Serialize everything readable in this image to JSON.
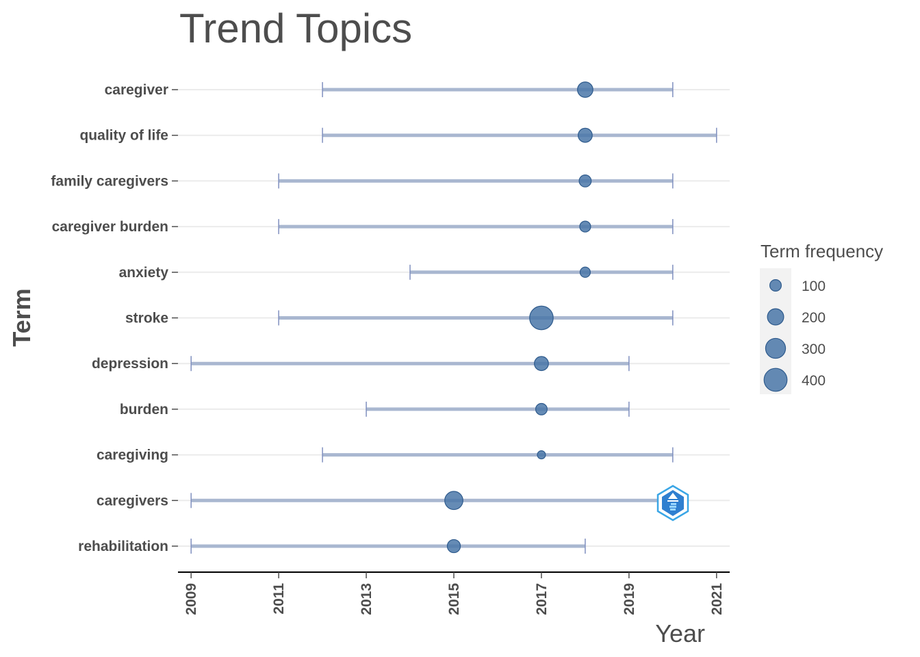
{
  "chart_data": {
    "type": "dot-range",
    "title": "Trend Topics",
    "xlabel": "Year",
    "ylabel": "Term",
    "xlim": [
      2008.7,
      2021.3
    ],
    "x_ticks": [
      2009,
      2011,
      2013,
      2015,
      2017,
      2019,
      2021
    ],
    "terms": [
      {
        "term": "caregiver",
        "start": 2012,
        "end": 2020,
        "median": 2018,
        "freq": 180
      },
      {
        "term": "quality of life",
        "start": 2012,
        "end": 2021,
        "median": 2018,
        "freq": 150
      },
      {
        "term": "family caregivers",
        "start": 2011,
        "end": 2020,
        "median": 2018,
        "freq": 110
      },
      {
        "term": "caregiver burden",
        "start": 2011,
        "end": 2020,
        "median": 2018,
        "freq": 90
      },
      {
        "term": "anxiety",
        "start": 2014,
        "end": 2020,
        "median": 2018,
        "freq": 80
      },
      {
        "term": "stroke",
        "start": 2011,
        "end": 2020,
        "median": 2017,
        "freq": 420
      },
      {
        "term": "depression",
        "start": 2009,
        "end": 2019,
        "median": 2017,
        "freq": 150
      },
      {
        "term": "burden",
        "start": 2013,
        "end": 2019,
        "median": 2017,
        "freq": 100
      },
      {
        "term": "caregiving",
        "start": 2012,
        "end": 2020,
        "median": 2017,
        "freq": 50
      },
      {
        "term": "caregivers",
        "start": 2009,
        "end": 2020,
        "median": 2015,
        "freq": 250
      },
      {
        "term": "rehabilitation",
        "start": 2009,
        "end": 2018,
        "median": 2015,
        "freq": 130
      }
    ],
    "legend": {
      "title": "Term frequency",
      "placement": "right",
      "entries": [
        {
          "label": "100",
          "value": 100
        },
        {
          "label": "200",
          "value": 200
        },
        {
          "label": "300",
          "value": 300
        },
        {
          "label": "400",
          "value": 400
        }
      ]
    },
    "colors": {
      "point_fill": "#4a77a8",
      "point_stroke": "#2e5a8c",
      "range_line": "#a9b7d0",
      "range_cap": "#7f8fbf",
      "gridline": "#ebebeb",
      "axis": "#000000"
    },
    "logo_icon": "bibliometrix-logo-icon"
  }
}
